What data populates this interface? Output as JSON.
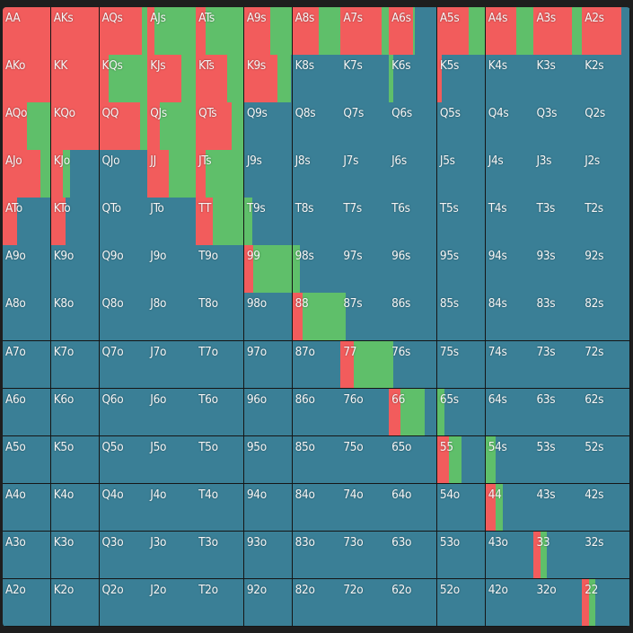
{
  "colors": {
    "raise": "#f25c5c",
    "call": "#5fbf6a",
    "fold": "#3a7f96"
  },
  "grid": [
    [
      [
        "AA",
        1,
        0
      ],
      [
        "AKs",
        1,
        0
      ],
      [
        "AQs",
        0.9,
        0.1
      ],
      [
        "AJs",
        0.15,
        0.85
      ],
      [
        "ATs",
        0.2,
        0.8
      ],
      [
        "A9s",
        0.55,
        0.45
      ],
      [
        "A8s",
        0.55,
        0.45
      ],
      [
        "A7s",
        0.85,
        0.15
      ],
      [
        "A6s",
        0.5,
        0.05
      ],
      [
        "A5s",
        0.65,
        0.35
      ],
      [
        "A4s",
        0.65,
        0.35
      ],
      [
        "A3s",
        0.8,
        0.2
      ],
      [
        "A2s",
        0.83,
        0
      ]
    ],
    [
      [
        "AKo",
        1,
        0
      ],
      [
        "KK",
        1,
        0
      ],
      [
        "KQs",
        0.2,
        0.8
      ],
      [
        "KJs",
        0.7,
        0.3
      ],
      [
        "KTs",
        0.65,
        0.35
      ],
      [
        "K9s",
        0.7,
        0.28
      ],
      [
        "K8s",
        0,
        0
      ],
      [
        "K7s",
        0,
        0
      ],
      [
        "K6s",
        0,
        0.1
      ],
      [
        "K5s",
        0.1,
        0
      ],
      [
        "K4s",
        0,
        0
      ],
      [
        "K3s",
        0,
        0
      ],
      [
        "K2s",
        0,
        0
      ]
    ],
    [
      [
        "AQo",
        0.5,
        0.5
      ],
      [
        "KQo",
        1,
        0
      ],
      [
        "QQ",
        0.85,
        0.15
      ],
      [
        "QJs",
        0.25,
        0.75
      ],
      [
        "QTs",
        0.75,
        0.25
      ],
      [
        "Q9s",
        0,
        0
      ],
      [
        "Q8s",
        0,
        0
      ],
      [
        "Q7s",
        0,
        0
      ],
      [
        "Q6s",
        0,
        0
      ],
      [
        "Q5s",
        0,
        0
      ],
      [
        "Q4s",
        0,
        0
      ],
      [
        "Q3s",
        0,
        0
      ],
      [
        "Q2s",
        0,
        0
      ]
    ],
    [
      [
        "AJo",
        0.78,
        0.22
      ],
      [
        "KJo",
        0.25,
        0.15
      ],
      [
        "QJo",
        0,
        0
      ],
      [
        "JJ",
        0.45,
        0.55
      ],
      [
        "JTs",
        0.2,
        0.8
      ],
      [
        "J9s",
        0,
        0
      ],
      [
        "J8s",
        0,
        0
      ],
      [
        "J7s",
        0,
        0
      ],
      [
        "J6s",
        0,
        0
      ],
      [
        "J5s",
        0,
        0
      ],
      [
        "J4s",
        0,
        0
      ],
      [
        "J3s",
        0,
        0
      ],
      [
        "J2s",
        0,
        0
      ]
    ],
    [
      [
        "ATo",
        0.3,
        0
      ],
      [
        "KTo",
        0.3,
        0
      ],
      [
        "QTo",
        0,
        0
      ],
      [
        "JTo",
        0,
        0
      ],
      [
        "TT",
        0.35,
        0.65
      ],
      [
        "T9s",
        0,
        0.18
      ],
      [
        "T8s",
        0,
        0
      ],
      [
        "T7s",
        0,
        0
      ],
      [
        "T6s",
        0,
        0
      ],
      [
        "T5s",
        0,
        0
      ],
      [
        "T4s",
        0,
        0
      ],
      [
        "T3s",
        0,
        0
      ],
      [
        "T2s",
        0,
        0
      ]
    ],
    [
      [
        "A9o",
        0,
        0
      ],
      [
        "K9o",
        0,
        0
      ],
      [
        "Q9o",
        0,
        0
      ],
      [
        "J9o",
        0,
        0
      ],
      [
        "T9o",
        0,
        0
      ],
      [
        "99",
        0.2,
        0.8
      ],
      [
        "98s",
        0,
        0.15
      ],
      [
        "97s",
        0,
        0
      ],
      [
        "96s",
        0,
        0
      ],
      [
        "95s",
        0,
        0
      ],
      [
        "94s",
        0,
        0
      ],
      [
        "93s",
        0,
        0
      ],
      [
        "92s",
        0,
        0
      ]
    ],
    [
      [
        "A8o",
        0,
        0
      ],
      [
        "K8o",
        0,
        0
      ],
      [
        "Q8o",
        0,
        0
      ],
      [
        "J8o",
        0,
        0
      ],
      [
        "T8o",
        0,
        0
      ],
      [
        "98o",
        0,
        0
      ],
      [
        "88",
        0.22,
        0.78
      ],
      [
        "87s",
        0,
        0.1
      ],
      [
        "86s",
        0,
        0
      ],
      [
        "85s",
        0,
        0
      ],
      [
        "84s",
        0,
        0
      ],
      [
        "83s",
        0,
        0
      ],
      [
        "82s",
        0,
        0
      ]
    ],
    [
      [
        "A7o",
        0,
        0
      ],
      [
        "K7o",
        0,
        0
      ],
      [
        "Q7o",
        0,
        0
      ],
      [
        "J7o",
        0,
        0
      ],
      [
        "T7o",
        0,
        0
      ],
      [
        "97o",
        0,
        0
      ],
      [
        "87o",
        0,
        0
      ],
      [
        "77",
        0.28,
        0.72
      ],
      [
        "76s",
        0,
        0.1
      ],
      [
        "75s",
        0,
        0
      ],
      [
        "74s",
        0,
        0
      ],
      [
        "73s",
        0,
        0
      ],
      [
        "72s",
        0,
        0
      ]
    ],
    [
      [
        "A6o",
        0,
        0
      ],
      [
        "K6o",
        0,
        0
      ],
      [
        "Q6o",
        0,
        0
      ],
      [
        "J6o",
        0,
        0
      ],
      [
        "T6o",
        0,
        0
      ],
      [
        "96o",
        0,
        0
      ],
      [
        "86o",
        0,
        0
      ],
      [
        "76o",
        0,
        0
      ],
      [
        "66",
        0.25,
        0.5
      ],
      [
        "65s",
        0,
        0.15
      ],
      [
        "64s",
        0,
        0
      ],
      [
        "63s",
        0,
        0
      ],
      [
        "62s",
        0,
        0
      ]
    ],
    [
      [
        "A5o",
        0,
        0
      ],
      [
        "K5o",
        0,
        0
      ],
      [
        "Q5o",
        0,
        0
      ],
      [
        "J5o",
        0,
        0
      ],
      [
        "T5o",
        0,
        0
      ],
      [
        "95o",
        0,
        0
      ],
      [
        "85o",
        0,
        0
      ],
      [
        "75o",
        0,
        0
      ],
      [
        "65o",
        0,
        0
      ],
      [
        "55",
        0.25,
        0.25
      ],
      [
        "54s",
        0,
        0.22
      ],
      [
        "53s",
        0,
        0
      ],
      [
        "52s",
        0,
        0
      ]
    ],
    [
      [
        "A4o",
        0,
        0
      ],
      [
        "K4o",
        0,
        0
      ],
      [
        "Q4o",
        0,
        0
      ],
      [
        "J4o",
        0,
        0
      ],
      [
        "T4o",
        0,
        0
      ],
      [
        "94o",
        0,
        0
      ],
      [
        "84o",
        0,
        0
      ],
      [
        "74o",
        0,
        0
      ],
      [
        "64o",
        0,
        0
      ],
      [
        "54o",
        0,
        0
      ],
      [
        "44",
        0.22,
        0.15
      ],
      [
        "43s",
        0,
        0
      ],
      [
        "42s",
        0,
        0
      ]
    ],
    [
      [
        "A3o",
        0,
        0
      ],
      [
        "K3o",
        0,
        0
      ],
      [
        "Q3o",
        0,
        0
      ],
      [
        "J3o",
        0,
        0
      ],
      [
        "T3o",
        0,
        0
      ],
      [
        "93o",
        0,
        0
      ],
      [
        "83o",
        0,
        0
      ],
      [
        "73o",
        0,
        0
      ],
      [
        "63o",
        0,
        0
      ],
      [
        "53o",
        0,
        0
      ],
      [
        "43o",
        0,
        0
      ],
      [
        "33",
        0.15,
        0.12
      ],
      [
        "32s",
        0,
        0
      ]
    ],
    [
      [
        "A2o",
        0,
        0
      ],
      [
        "K2o",
        0,
        0
      ],
      [
        "Q2o",
        0,
        0
      ],
      [
        "J2o",
        0,
        0
      ],
      [
        "T2o",
        0,
        0
      ],
      [
        "92o",
        0,
        0
      ],
      [
        "82o",
        0,
        0
      ],
      [
        "72o",
        0,
        0
      ],
      [
        "62o",
        0,
        0
      ],
      [
        "52o",
        0,
        0
      ],
      [
        "42o",
        0,
        0
      ],
      [
        "32o",
        0,
        0
      ],
      [
        "22",
        0.15,
        0.12
      ]
    ]
  ]
}
